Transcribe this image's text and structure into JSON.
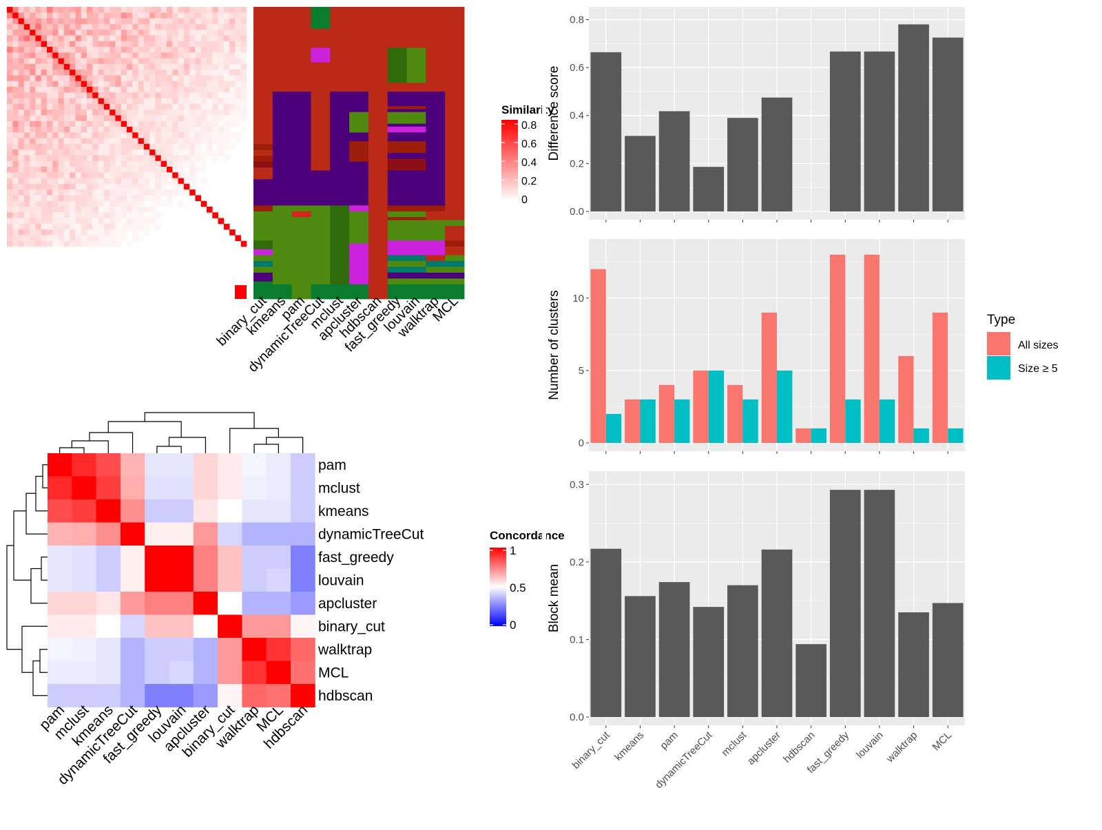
{
  "methods": [
    "binary_cut",
    "kmeans",
    "pam",
    "dynamicTreeCut",
    "mclust",
    "apcluster",
    "hdbscan",
    "fast_greedy",
    "louvain",
    "walktrap",
    "MCL"
  ],
  "similarity_legend": {
    "title": "Similarity",
    "ticks": [
      "0.8",
      "0.6",
      "0.4",
      "0.2",
      "0"
    ]
  },
  "concordance_legend": {
    "title": "Concordance",
    "ticks": [
      "1",
      "0.5",
      "0"
    ]
  },
  "type_legend": {
    "title": "Type",
    "items": [
      "All sizes",
      "Size ≥ 5"
    ]
  },
  "colors": {
    "bar_gray": "#595959",
    "panel_bg": "#ebebeb",
    "all_sizes": "#F8766D",
    "size_ge5": "#00BFC4",
    "sim_high": "#ff0000",
    "conc_low": "#0000ff",
    "cluster_palette": [
      "#ba2a17",
      "#0a7c2d",
      "#cc22dd",
      "#4b007a",
      "#4f8a10",
      "#2f6b0a",
      "#9b1d0a",
      "#8d0f16",
      "#007a6a",
      "#d4281f"
    ]
  },
  "chart_data": [
    {
      "type": "heatmap",
      "name": "similarity_matrix",
      "description_free": true,
      "n": 42,
      "diagonal": 1,
      "scale": [
        0,
        0.8
      ]
    },
    {
      "type": "heatmap",
      "name": "cluster_assignments",
      "columns": [
        "binary_cut",
        "kmeans",
        "pam",
        "dynamicTreeCut",
        "mclust",
        "apcluster",
        "hdbscan",
        "fast_greedy",
        "louvain",
        "walktrap",
        "MCL"
      ]
    },
    {
      "type": "heatmap",
      "name": "concordance",
      "rows": [
        "pam",
        "mclust",
        "kmeans",
        "dynamicTreeCut",
        "fast_greedy",
        "louvain",
        "apcluster",
        "binary_cut",
        "walktrap",
        "MCL",
        "hdbscan"
      ],
      "columns": [
        "pam",
        "mclust",
        "kmeans",
        "dynamicTreeCut",
        "fast_greedy",
        "louvain",
        "apcluster",
        "binary_cut",
        "walktrap",
        "MCL",
        "hdbscan"
      ],
      "values": [
        [
          1.0,
          0.92,
          0.85,
          0.65,
          0.45,
          0.45,
          0.58,
          0.54,
          0.48,
          0.46,
          0.4
        ],
        [
          0.92,
          1.0,
          0.88,
          0.66,
          0.44,
          0.44,
          0.58,
          0.54,
          0.47,
          0.46,
          0.4
        ],
        [
          0.85,
          0.88,
          1.0,
          0.72,
          0.4,
          0.4,
          0.55,
          0.5,
          0.45,
          0.45,
          0.4
        ],
        [
          0.65,
          0.66,
          0.72,
          1.0,
          0.53,
          0.53,
          0.7,
          0.42,
          0.35,
          0.35,
          0.35
        ],
        [
          0.45,
          0.44,
          0.4,
          0.53,
          1.0,
          1.0,
          0.75,
          0.62,
          0.4,
          0.4,
          0.25
        ],
        [
          0.45,
          0.44,
          0.4,
          0.53,
          1.0,
          1.0,
          0.75,
          0.62,
          0.4,
          0.42,
          0.25
        ],
        [
          0.58,
          0.58,
          0.55,
          0.7,
          0.75,
          0.75,
          1.0,
          0.5,
          0.35,
          0.35,
          0.3
        ],
        [
          0.54,
          0.54,
          0.5,
          0.42,
          0.62,
          0.62,
          0.5,
          1.0,
          0.7,
          0.7,
          0.52
        ],
        [
          0.48,
          0.47,
          0.45,
          0.35,
          0.4,
          0.4,
          0.35,
          0.7,
          1.0,
          0.9,
          0.8
        ],
        [
          0.46,
          0.46,
          0.45,
          0.35,
          0.4,
          0.42,
          0.35,
          0.7,
          0.9,
          1.0,
          0.78
        ],
        [
          0.4,
          0.4,
          0.4,
          0.35,
          0.25,
          0.25,
          0.3,
          0.52,
          0.8,
          0.78,
          1.0
        ]
      ],
      "scale": [
        0,
        0.5,
        1
      ]
    },
    {
      "type": "bar",
      "name": "difference_score",
      "ylabel": "Difference score",
      "ylim": [
        0,
        0.83
      ],
      "yticks": [
        0.0,
        0.2,
        0.4,
        0.6,
        0.8
      ],
      "categories": [
        "binary_cut",
        "kmeans",
        "pam",
        "dynamicTreeCut",
        "mclust",
        "apcluster",
        "hdbscan",
        "fast_greedy",
        "louvain",
        "walktrap",
        "MCL"
      ],
      "values": [
        0.664,
        0.315,
        0.418,
        0.186,
        0.39,
        0.475,
        0,
        0.667,
        0.667,
        0.78,
        0.725
      ]
    },
    {
      "type": "bar",
      "name": "number_of_clusters",
      "ylabel": "Number of clusters",
      "ylim": [
        0,
        13.7
      ],
      "yticks": [
        0,
        5,
        10
      ],
      "categories": [
        "binary_cut",
        "kmeans",
        "pam",
        "dynamicTreeCut",
        "mclust",
        "apcluster",
        "hdbscan",
        "fast_greedy",
        "louvain",
        "walktrap",
        "MCL"
      ],
      "series": [
        {
          "name": "All sizes",
          "values": [
            12,
            3,
            4,
            5,
            4,
            9,
            1,
            13,
            13,
            6,
            9
          ]
        },
        {
          "name": "Size ≥ 5",
          "values": [
            2,
            3,
            3,
            5,
            3,
            5,
            1,
            3,
            3,
            1,
            1
          ]
        }
      ]
    },
    {
      "type": "bar",
      "name": "block_mean",
      "ylabel": "Block mean",
      "xlabel": "",
      "ylim": [
        0,
        0.31
      ],
      "yticks": [
        0.0,
        0.1,
        0.2,
        0.3
      ],
      "categories": [
        "binary_cut",
        "kmeans",
        "pam",
        "dynamicTreeCut",
        "mclust",
        "apcluster",
        "hdbscan",
        "fast_greedy",
        "louvain",
        "walktrap",
        "MCL"
      ],
      "values": [
        0.217,
        0.156,
        0.174,
        0.142,
        0.17,
        0.216,
        0.094,
        0.293,
        0.293,
        0.135,
        0.147
      ]
    }
  ]
}
